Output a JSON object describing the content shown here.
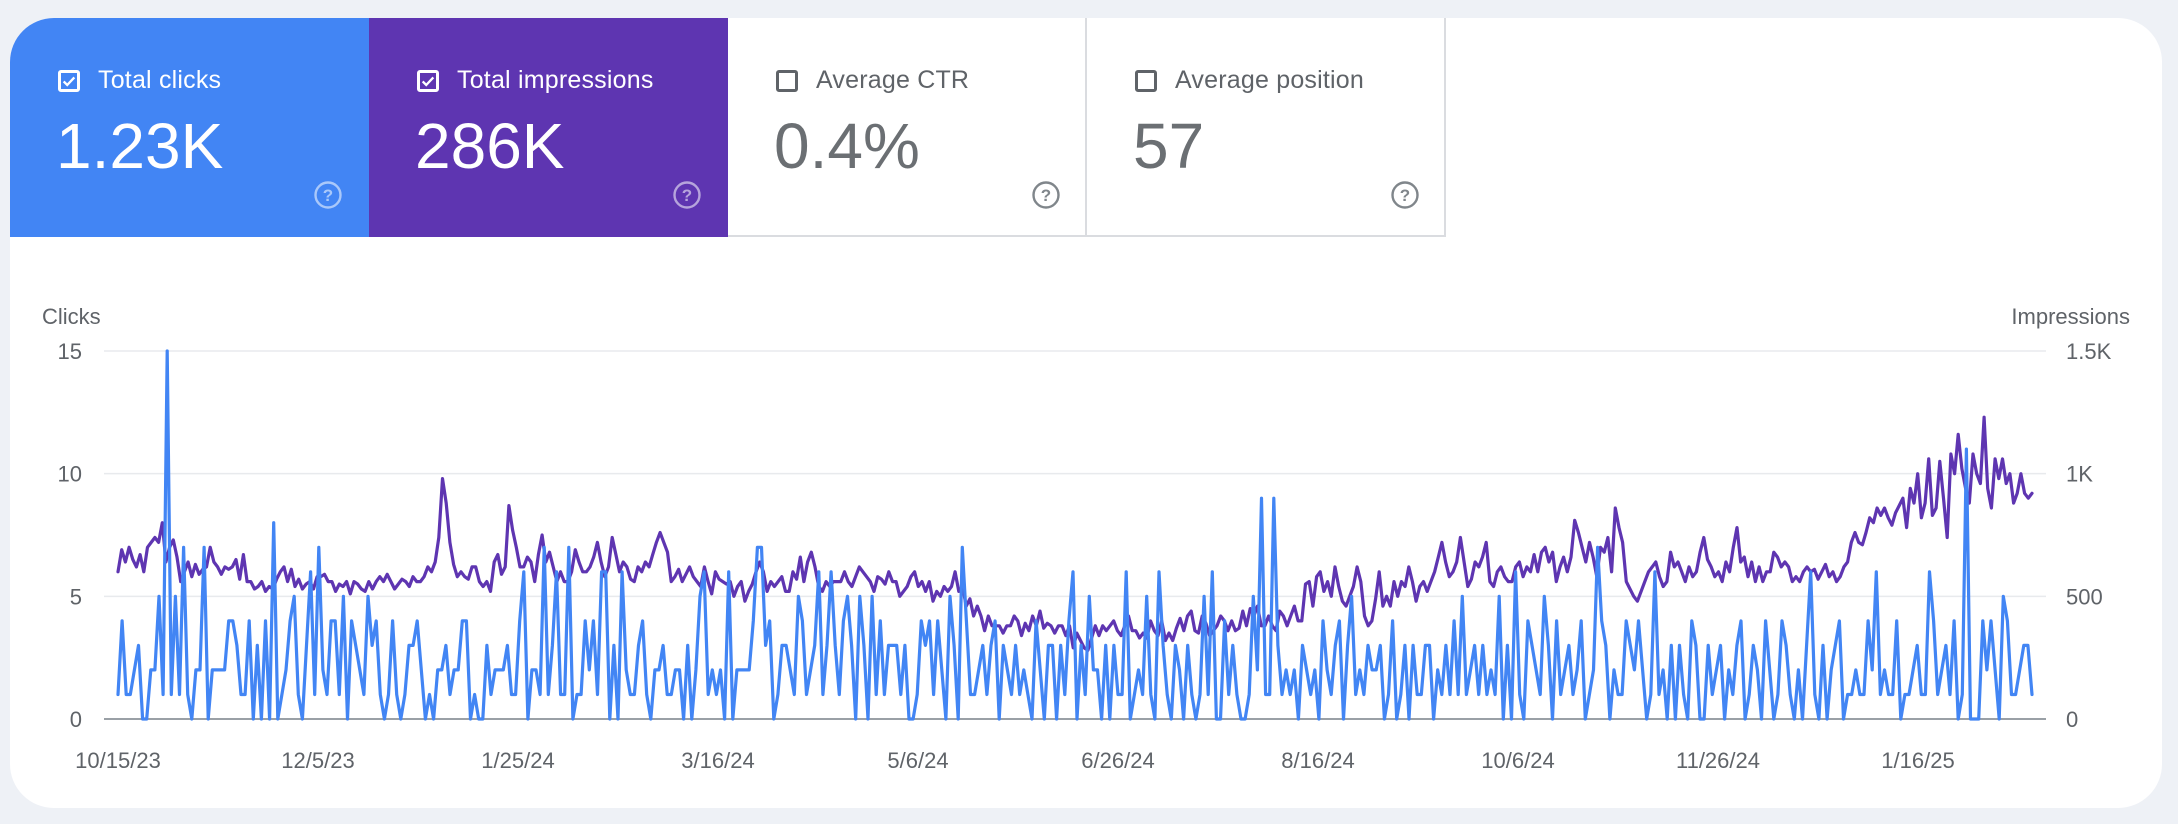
{
  "tiles": {
    "clicks": {
      "label": "Total clicks",
      "value": "1.23K",
      "checked": true,
      "color": "#4285f4"
    },
    "impressions": {
      "label": "Total impressions",
      "value": "286K",
      "checked": true,
      "color": "#5e35b1"
    },
    "ctr": {
      "label": "Average CTR",
      "value": "0.4%",
      "checked": false
    },
    "position": {
      "label": "Average position",
      "value": "57",
      "checked": false
    }
  },
  "chart_data": {
    "type": "line",
    "x_start": "10/15/23",
    "x_end": "2/23/25",
    "x_ticks": [
      "10/15/23",
      "12/5/23",
      "1/25/24",
      "3/16/24",
      "5/6/24",
      "6/26/24",
      "8/16/24",
      "10/6/24",
      "11/26/24",
      "1/16/25"
    ],
    "y_left": {
      "label": "Clicks",
      "ticks": [
        "0",
        "5",
        "10",
        "15"
      ],
      "range": [
        0,
        15
      ]
    },
    "y_right": {
      "label": "Impressions",
      "ticks": [
        "0",
        "500",
        "1K",
        "1.5K"
      ],
      "range": [
        0,
        1500
      ]
    },
    "grid": true,
    "series": [
      {
        "name": "Clicks",
        "axis": "left",
        "color": "#4285f4",
        "values": [
          1,
          4,
          1,
          1,
          2,
          3,
          0,
          0,
          2,
          2,
          5,
          1,
          15,
          1,
          5,
          1,
          7,
          1,
          0,
          2,
          2,
          7,
          0,
          2,
          2,
          2,
          2,
          4,
          4,
          3,
          1,
          1,
          4,
          0,
          3,
          0,
          4,
          0,
          8,
          0,
          1,
          2,
          4,
          5,
          1,
          0,
          3,
          6,
          1,
          7,
          2,
          1,
          4,
          4,
          1,
          5,
          0,
          4,
          3,
          2,
          1,
          5,
          3,
          4,
          1,
          0,
          1,
          4,
          1,
          0,
          1,
          3,
          3,
          4,
          2,
          0,
          1,
          0,
          2,
          2,
          3,
          1,
          2,
          2,
          4,
          4,
          0,
          1,
          0,
          0,
          3,
          1,
          2,
          2,
          2,
          3,
          1,
          1,
          4,
          6,
          0,
          2,
          2,
          1,
          7,
          1,
          3,
          6,
          1,
          1,
          7,
          0,
          1,
          1,
          4,
          2,
          4,
          1,
          6,
          6,
          0,
          3,
          0,
          6,
          2,
          1,
          1,
          3,
          4,
          1,
          0,
          2,
          2,
          3,
          1,
          1,
          2,
          2,
          0,
          3,
          0,
          2,
          5,
          6,
          1,
          2,
          1,
          2,
          0,
          6,
          0,
          2,
          2,
          2,
          2,
          4,
          7,
          7,
          3,
          4,
          0,
          1,
          3,
          3,
          2,
          1,
          5,
          4,
          1,
          2,
          3,
          6,
          1,
          3,
          6,
          3,
          1,
          4,
          5,
          3,
          0,
          5,
          3,
          0,
          5,
          1,
          4,
          1,
          3,
          3,
          3,
          1,
          3,
          0,
          0,
          1,
          4,
          3,
          4,
          1,
          4,
          2,
          0,
          5,
          3,
          0,
          7,
          4,
          1,
          1,
          2,
          3,
          1,
          3,
          4,
          0,
          3,
          2,
          1,
          3,
          1,
          2,
          1,
          0,
          4,
          2,
          0,
          3,
          3,
          0,
          3,
          1,
          4,
          6,
          0,
          3,
          1,
          5,
          2,
          2,
          0,
          3,
          0,
          3,
          1,
          1,
          6,
          0,
          1,
          2,
          1,
          5,
          1,
          0,
          6,
          3,
          1,
          0,
          3,
          2,
          0,
          3,
          1,
          0,
          1,
          5,
          1,
          6,
          0,
          0,
          4,
          1,
          3,
          1,
          0,
          0,
          1,
          5,
          2,
          9,
          1,
          1,
          9,
          3,
          1,
          2,
          1,
          2,
          0,
          3,
          2,
          1,
          2,
          0,
          4,
          2,
          1,
          3,
          4,
          0,
          3,
          5,
          1,
          2,
          1,
          3,
          2,
          2,
          3,
          0,
          1,
          4,
          0,
          1,
          3,
          0,
          3,
          1,
          1,
          3,
          3,
          0,
          2,
          1,
          3,
          1,
          4,
          1,
          5,
          1,
          2,
          3,
          1,
          3,
          1,
          2,
          1,
          5,
          0,
          3,
          0,
          6,
          1,
          0,
          4,
          3,
          2,
          1,
          5,
          3,
          0,
          4,
          1,
          2,
          3,
          1,
          2,
          4,
          0,
          1,
          2,
          7,
          4,
          3,
          0,
          2,
          1,
          1,
          4,
          3,
          2,
          4,
          2,
          0,
          1,
          6,
          1,
          2,
          0,
          3,
          0,
          3,
          1,
          0,
          4,
          3,
          0,
          0,
          3,
          1,
          2,
          3,
          0,
          2,
          1,
          3,
          4,
          0,
          1,
          3,
          2,
          0,
          4,
          2,
          0,
          1,
          4,
          3,
          1,
          0,
          2,
          0,
          3,
          6,
          1,
          0,
          3,
          0,
          2,
          3,
          4,
          0,
          1,
          1,
          2,
          1,
          1,
          4,
          2,
          6,
          1,
          2,
          1,
          1,
          4,
          0,
          1,
          1,
          2,
          3,
          1,
          1,
          6,
          4,
          1,
          2,
          3,
          1,
          4,
          0,
          1,
          11,
          0,
          0,
          0,
          4,
          2,
          4,
          2,
          0,
          5,
          4,
          1,
          1,
          2,
          3,
          3,
          1
        ]
      },
      {
        "name": "Impressions",
        "axis": "right",
        "color": "#5e35b1",
        "values": [
          600,
          690,
          640,
          700,
          650,
          620,
          670,
          600,
          700,
          720,
          740,
          720,
          800,
          640,
          700,
          730,
          660,
          560,
          600,
          640,
          580,
          630,
          590,
          610,
          620,
          700,
          640,
          620,
          590,
          620,
          610,
          620,
          650,
          570,
          670,
          560,
          560,
          530,
          540,
          560,
          520,
          540,
          530,
          570,
          600,
          620,
          560,
          610,
          540,
          570,
          530,
          550,
          560,
          530,
          580,
          580,
          590,
          560,
          560,
          520,
          550,
          540,
          560,
          510,
          560,
          550,
          530,
          520,
          560,
          530,
          560,
          580,
          560,
          590,
          560,
          530,
          550,
          570,
          560,
          540,
          580,
          560,
          560,
          580,
          620,
          600,
          640,
          740,
          980,
          880,
          720,
          630,
          580,
          600,
          580,
          570,
          620,
          620,
          560,
          540,
          560,
          520,
          640,
          670,
          590,
          620,
          870,
          770,
          700,
          620,
          620,
          660,
          640,
          560,
          670,
          750,
          640,
          680,
          620,
          560,
          600,
          560,
          560,
          600,
          690,
          640,
          600,
          600,
          620,
          660,
          720,
          640,
          580,
          620,
          740,
          670,
          600,
          640,
          620,
          570,
          560,
          620,
          600,
          640,
          620,
          670,
          720,
          760,
          720,
          680,
          560,
          580,
          610,
          560,
          590,
          620,
          580,
          560,
          540,
          620,
          560,
          510,
          600,
          570,
          560,
          550,
          560,
          500,
          540,
          560,
          480,
          520,
          550,
          600,
          640,
          600,
          520,
          560,
          540,
          560,
          580,
          520,
          520,
          600,
          570,
          660,
          560,
          640,
          680,
          620,
          540,
          520,
          560,
          540,
          560,
          560,
          560,
          600,
          560,
          540,
          580,
          620,
          600,
          580,
          560,
          520,
          580,
          570,
          550,
          600,
          560,
          560,
          500,
          520,
          540,
          580,
          600,
          540,
          560,
          520,
          560,
          480,
          520,
          500,
          540,
          520,
          540,
          600,
          520,
          540,
          460,
          490,
          420,
          460,
          420,
          360,
          420,
          380,
          380,
          380,
          350,
          380,
          380,
          420,
          400,
          340,
          390,
          360,
          420,
          380,
          440,
          370,
          390,
          380,
          350,
          380,
          380,
          340,
          380,
          290,
          350,
          320,
          290,
          280,
          330,
          380,
          340,
          380,
          360,
          380,
          400,
          360,
          340,
          380,
          420,
          360,
          360,
          330,
          350,
          330,
          400,
          360,
          340,
          400,
          320,
          350,
          320,
          370,
          410,
          360,
          420,
          440,
          360,
          350,
          420,
          390,
          340,
          360,
          380,
          420,
          400,
          360,
          400,
          360,
          370,
          440,
          380,
          450,
          420,
          460,
          380,
          380,
          420,
          380,
          360,
          440,
          420,
          380,
          420,
          460,
          400,
          400,
          550,
          560,
          460,
          580,
          600,
          520,
          560,
          500,
          620,
          540,
          480,
          460,
          500,
          540,
          620,
          560,
          420,
          380,
          400,
          490,
          600,
          460,
          500,
          460,
          560,
          500,
          560,
          540,
          620,
          560,
          480,
          540,
          560,
          520,
          560,
          600,
          660,
          720,
          640,
          580,
          600,
          640,
          740,
          640,
          540,
          570,
          640,
          620,
          660,
          720,
          560,
          540,
          600,
          620,
          580,
          560,
          560,
          620,
          640,
          580,
          620,
          600,
          670,
          600,
          680,
          700,
          640,
          680,
          560,
          620,
          660,
          600,
          660,
          810,
          760,
          700,
          640,
          720,
          660,
          580,
          700,
          680,
          740,
          600,
          860,
          780,
          720,
          560,
          530,
          500,
          480,
          520,
          560,
          600,
          620,
          640,
          580,
          540,
          560,
          680,
          620,
          640,
          600,
          560,
          620,
          580,
          600,
          680,
          740,
          650,
          620,
          580,
          600,
          560,
          640,
          600,
          700,
          780,
          640,
          660,
          580,
          640,
          560,
          620,
          560,
          600,
          600,
          680,
          660,
          620,
          640,
          620,
          560,
          580,
          560,
          600,
          620,
          600,
          610,
          570,
          600,
          630,
          580,
          600,
          560,
          580,
          620,
          640,
          720,
          760,
          720,
          710,
          760,
          820,
          800,
          860,
          830,
          860,
          820,
          790,
          840,
          870,
          900,
          780,
          940,
          880,
          1000,
          820,
          880,
          1060,
          830,
          860,
          1050,
          900,
          740,
          1080,
          1000,
          1160,
          1020,
          940,
          880,
          1080,
          1000,
          960,
          1230,
          940,
          860,
          1060,
          980,
          1060,
          960,
          1000,
          880,
          920,
          1000,
          920,
          900,
          920
        ]
      }
    ]
  }
}
